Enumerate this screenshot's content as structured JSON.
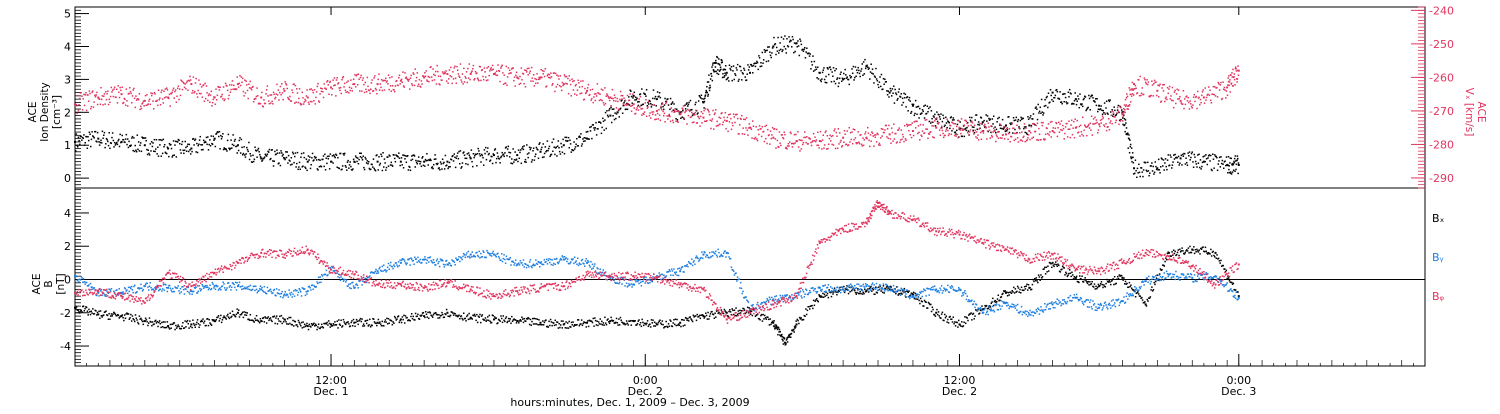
{
  "colors": {
    "black": "#000000",
    "pink": "#e0355f",
    "blue": "#1f7fe0"
  },
  "chart_data": [
    {
      "type": "scatter",
      "panel": "top",
      "ylabel_lines": [
        "ACE",
        "Ion Density",
        "[cm⁻³]"
      ],
      "y2label_lines": [
        "ACE",
        "Vₓ [km/s]"
      ],
      "ylim": [
        -0.3,
        5.2
      ],
      "y2lim": [
        -293,
        -239
      ],
      "yticks": [
        0,
        1,
        2,
        3,
        4,
        5
      ],
      "y2ticks": [
        -240,
        -250,
        -260,
        -270,
        -280,
        -290
      ],
      "series": [
        {
          "name": "",
          "axis": "left",
          "color": "#000000",
          "points": [
            [
              0,
              1.1
            ],
            [
              2,
              1.2
            ],
            [
              4,
              1.1
            ],
            [
              6,
              1.0
            ],
            [
              8,
              0.9
            ],
            [
              10,
              0.9
            ],
            [
              12,
              1.2
            ],
            [
              14,
              1.0
            ],
            [
              16,
              0.6
            ],
            [
              18,
              0.6
            ],
            [
              20,
              0.5
            ],
            [
              22,
              0.5
            ],
            [
              24,
              0.5
            ],
            [
              26,
              0.5
            ],
            [
              28,
              0.5
            ],
            [
              30,
              0.5
            ],
            [
              32,
              0.5
            ],
            [
              34,
              0.6
            ],
            [
              36,
              0.7
            ],
            [
              38,
              0.7
            ],
            [
              40,
              0.8
            ],
            [
              42,
              1.0
            ],
            [
              44,
              1.2
            ],
            [
              46,
              1.9
            ],
            [
              48,
              2.5
            ],
            [
              50,
              2.4
            ],
            [
              52,
              2.0
            ],
            [
              54,
              2.3
            ],
            [
              55,
              3.5
            ],
            [
              56,
              3.2
            ],
            [
              58,
              3.2
            ],
            [
              60,
              4.0
            ],
            [
              62,
              4.1
            ],
            [
              64,
              3.2
            ],
            [
              66,
              3.0
            ],
            [
              68,
              3.4
            ],
            [
              70,
              2.6
            ],
            [
              72,
              2.2
            ],
            [
              74,
              1.8
            ],
            [
              76,
              1.5
            ],
            [
              78,
              1.7
            ],
            [
              80,
              1.6
            ],
            [
              82,
              1.6
            ],
            [
              84,
              2.6
            ],
            [
              86,
              2.4
            ],
            [
              88,
              2.2
            ],
            [
              90,
              2.0
            ],
            [
              91,
              0.3
            ],
            [
              93,
              0.3
            ],
            [
              95,
              0.6
            ],
            [
              97,
              0.5
            ],
            [
              99,
              0.4
            ],
            [
              100,
              0.4
            ]
          ]
        },
        {
          "name": "",
          "axis": "right",
          "color": "#e0355f",
          "points": [
            [
              0,
              -268
            ],
            [
              2,
              -266
            ],
            [
              4,
              -265
            ],
            [
              6,
              -267
            ],
            [
              8,
              -266
            ],
            [
              10,
              -262
            ],
            [
              12,
              -266
            ],
            [
              14,
              -262
            ],
            [
              16,
              -266
            ],
            [
              18,
              -264
            ],
            [
              20,
              -266
            ],
            [
              22,
              -263
            ],
            [
              24,
              -262
            ],
            [
              26,
              -262
            ],
            [
              28,
              -261
            ],
            [
              30,
              -260
            ],
            [
              32,
              -259
            ],
            [
              34,
              -259
            ],
            [
              36,
              -259
            ],
            [
              38,
              -260
            ],
            [
              40,
              -260
            ],
            [
              42,
              -262
            ],
            [
              44,
              -264
            ],
            [
              46,
              -266
            ],
            [
              48,
              -268
            ],
            [
              50,
              -270
            ],
            [
              52,
              -271
            ],
            [
              54,
              -272
            ],
            [
              56,
              -273
            ],
            [
              58,
              -275
            ],
            [
              60,
              -278
            ],
            [
              62,
              -279
            ],
            [
              64,
              -279
            ],
            [
              66,
              -278
            ],
            [
              68,
              -278
            ],
            [
              70,
              -277
            ],
            [
              72,
              -276
            ],
            [
              74,
              -275
            ],
            [
              76,
              -275
            ],
            [
              78,
              -276
            ],
            [
              80,
              -277
            ],
            [
              82,
              -276
            ],
            [
              84,
              -276
            ],
            [
              86,
              -275
            ],
            [
              88,
              -274
            ],
            [
              90,
              -271
            ],
            [
              91,
              -262
            ],
            [
              93,
              -264
            ],
            [
              95,
              -267
            ],
            [
              97,
              -266
            ],
            [
              99,
              -263
            ],
            [
              100,
              -258
            ]
          ]
        }
      ]
    },
    {
      "type": "scatter",
      "panel": "bottom",
      "ylabel_lines": [
        "ACE",
        "B",
        "[nT]"
      ],
      "ylim": [
        -5.2,
        5.5
      ],
      "yticks": [
        -4,
        -2,
        0,
        2,
        4
      ],
      "xlabel": "hours:minutes, Dec.  1, 2009 – Dec.  3, 2009",
      "xlim": [
        0,
        116
      ],
      "xticks": [
        {
          "at": 22,
          "line1": "12:00",
          "line2": "Dec. 1"
        },
        {
          "at": 49,
          "line1": "0:00",
          "line2": "Dec. 2"
        },
        {
          "at": 76,
          "line1": "12:00",
          "line2": "Dec. 2"
        },
        {
          "at": 100,
          "line1": "0:00",
          "line2": "Dec. 3"
        }
      ],
      "legend_position": "right",
      "series": [
        {
          "name": "Bₓ",
          "color": "#000000",
          "points": [
            [
              0,
              -1.7
            ],
            [
              2,
              -2.1
            ],
            [
              4,
              -2.2
            ],
            [
              6,
              -2.5
            ],
            [
              8,
              -2.8
            ],
            [
              10,
              -2.7
            ],
            [
              12,
              -2.5
            ],
            [
              14,
              -2.0
            ],
            [
              16,
              -2.5
            ],
            [
              18,
              -2.4
            ],
            [
              20,
              -2.8
            ],
            [
              22,
              -2.7
            ],
            [
              24,
              -2.6
            ],
            [
              26,
              -2.6
            ],
            [
              28,
              -2.4
            ],
            [
              30,
              -2.2
            ],
            [
              32,
              -2.0
            ],
            [
              34,
              -2.3
            ],
            [
              36,
              -2.4
            ],
            [
              38,
              -2.5
            ],
            [
              40,
              -2.6
            ],
            [
              42,
              -2.7
            ],
            [
              44,
              -2.6
            ],
            [
              46,
              -2.5
            ],
            [
              48,
              -2.5
            ],
            [
              50,
              -2.7
            ],
            [
              52,
              -2.6
            ],
            [
              54,
              -2.2
            ],
            [
              56,
              -2.0
            ],
            [
              58,
              -1.9
            ],
            [
              60,
              -2.6
            ],
            [
              61,
              -3.8
            ],
            [
              62,
              -2.7
            ],
            [
              64,
              -1.0
            ],
            [
              66,
              -0.6
            ],
            [
              68,
              -0.7
            ],
            [
              70,
              -0.6
            ],
            [
              72,
              -0.9
            ],
            [
              74,
              -2.0
            ],
            [
              76,
              -2.7
            ],
            [
              78,
              -1.8
            ],
            [
              80,
              -0.8
            ],
            [
              82,
              -0.5
            ],
            [
              84,
              1.0
            ],
            [
              86,
              0.1
            ],
            [
              88,
              -0.4
            ],
            [
              90,
              0.1
            ],
            [
              92,
              -1.5
            ],
            [
              94,
              1.6
            ],
            [
              96,
              1.8
            ],
            [
              98,
              1.6
            ],
            [
              100,
              -1.0
            ]
          ]
        },
        {
          "name": "Bᵧ",
          "color": "#1f7fe0",
          "points": [
            [
              0,
              0.2
            ],
            [
              2,
              -0.8
            ],
            [
              4,
              -0.8
            ],
            [
              6,
              -0.4
            ],
            [
              8,
              -0.5
            ],
            [
              10,
              -0.7
            ],
            [
              12,
              -0.4
            ],
            [
              14,
              -0.4
            ],
            [
              16,
              -0.6
            ],
            [
              18,
              -0.9
            ],
            [
              20,
              -0.7
            ],
            [
              22,
              0.6
            ],
            [
              24,
              -0.5
            ],
            [
              26,
              0.5
            ],
            [
              28,
              1.0
            ],
            [
              30,
              1.2
            ],
            [
              32,
              0.9
            ],
            [
              34,
              1.5
            ],
            [
              36,
              1.5
            ],
            [
              38,
              0.9
            ],
            [
              40,
              1.0
            ],
            [
              42,
              1.2
            ],
            [
              44,
              1.0
            ],
            [
              46,
              0.1
            ],
            [
              48,
              -0.3
            ],
            [
              50,
              0.2
            ],
            [
              52,
              0.5
            ],
            [
              54,
              1.5
            ],
            [
              56,
              1.6
            ],
            [
              58,
              -1.8
            ],
            [
              60,
              -1.2
            ],
            [
              62,
              -1.0
            ],
            [
              64,
              -0.5
            ],
            [
              66,
              -0.6
            ],
            [
              68,
              -0.4
            ],
            [
              70,
              -0.5
            ],
            [
              72,
              -1.0
            ],
            [
              74,
              -0.6
            ],
            [
              76,
              -0.6
            ],
            [
              78,
              -2.0
            ],
            [
              80,
              -1.4
            ],
            [
              82,
              -2.1
            ],
            [
              84,
              -1.5
            ],
            [
              86,
              -1.1
            ],
            [
              88,
              -1.7
            ],
            [
              90,
              -1.3
            ],
            [
              92,
              -0.1
            ],
            [
              94,
              0.3
            ],
            [
              96,
              0.1
            ],
            [
              98,
              0.2
            ],
            [
              100,
              -1.1
            ]
          ]
        },
        {
          "name": "Bᵩ",
          "color": "#e0355f",
          "points": [
            [
              0,
              -0.8
            ],
            [
              2,
              -0.7
            ],
            [
              4,
              -1.0
            ],
            [
              6,
              -1.4
            ],
            [
              8,
              0.4
            ],
            [
              10,
              -0.4
            ],
            [
              12,
              0.4
            ],
            [
              14,
              1.0
            ],
            [
              16,
              1.6
            ],
            [
              18,
              1.5
            ],
            [
              20,
              1.8
            ],
            [
              22,
              0.6
            ],
            [
              24,
              0.3
            ],
            [
              26,
              -0.3
            ],
            [
              28,
              -0.3
            ],
            [
              30,
              -0.5
            ],
            [
              32,
              -0.2
            ],
            [
              34,
              -0.6
            ],
            [
              36,
              -1.0
            ],
            [
              38,
              -0.7
            ],
            [
              40,
              -0.5
            ],
            [
              42,
              -0.4
            ],
            [
              44,
              0.3
            ],
            [
              46,
              0.2
            ],
            [
              48,
              0.2
            ],
            [
              50,
              0.1
            ],
            [
              52,
              -0.3
            ],
            [
              54,
              -0.6
            ],
            [
              56,
              -2.4
            ],
            [
              58,
              -2.0
            ],
            [
              60,
              -1.5
            ],
            [
              62,
              -1.0
            ],
            [
              64,
              2.2
            ],
            [
              66,
              3.0
            ],
            [
              68,
              3.4
            ],
            [
              69,
              4.6
            ],
            [
              70,
              4.0
            ],
            [
              72,
              3.6
            ],
            [
              74,
              2.9
            ],
            [
              76,
              2.7
            ],
            [
              78,
              2.2
            ],
            [
              80,
              1.8
            ],
            [
              82,
              1.2
            ],
            [
              84,
              1.5
            ],
            [
              86,
              0.6
            ],
            [
              88,
              0.5
            ],
            [
              90,
              1.0
            ],
            [
              92,
              1.6
            ],
            [
              94,
              1.4
            ],
            [
              96,
              0.8
            ],
            [
              98,
              -0.3
            ],
            [
              100,
              0.9
            ]
          ]
        }
      ]
    }
  ]
}
